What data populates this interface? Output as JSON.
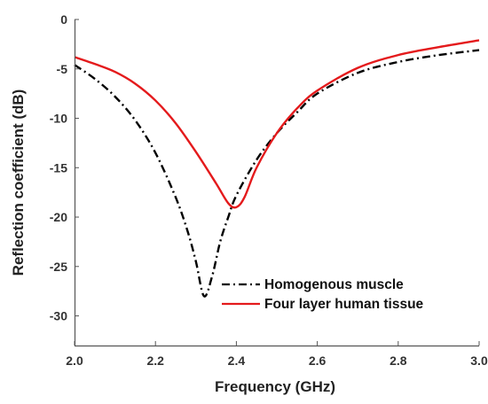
{
  "chart_data": {
    "type": "line",
    "title": "",
    "xlabel": "Frequency (GHz)",
    "ylabel": "Reflection coefficient (dB)",
    "xlim": [
      2.0,
      3.0
    ],
    "ylim": [
      -33,
      0
    ],
    "xticks": [
      "2.0",
      "2.2",
      "2.4",
      "2.6",
      "2.8",
      "3.0"
    ],
    "xtick_values": [
      2.0,
      2.2,
      2.4,
      2.6,
      2.8,
      3.0
    ],
    "yticks": [
      "0",
      "-5",
      "-10",
      "-15",
      "-20",
      "-25",
      "-30"
    ],
    "ytick_values": [
      0,
      -5,
      -10,
      -15,
      -20,
      -25,
      -30
    ],
    "grid": false,
    "legend_position": "bottom-right",
    "series": [
      {
        "name": "Homogenous muscle",
        "color": "#000000",
        "style": "dash-dot",
        "x": [
          2.0,
          2.05,
          2.1,
          2.15,
          2.2,
          2.25,
          2.28,
          2.3,
          2.32,
          2.34,
          2.36,
          2.38,
          2.4,
          2.45,
          2.5,
          2.55,
          2.6,
          2.7,
          2.8,
          2.9,
          3.0
        ],
        "y": [
          -4.6,
          -6.0,
          -7.8,
          -10.2,
          -13.5,
          -18.0,
          -21.5,
          -24.5,
          -28.0,
          -26.0,
          -22.5,
          -20.0,
          -17.8,
          -14.2,
          -11.5,
          -9.4,
          -7.5,
          -5.4,
          -4.3,
          -3.6,
          -3.1
        ]
      },
      {
        "name": "Four layer human tissue",
        "color": "#e41a1c",
        "style": "solid",
        "x": [
          2.0,
          2.05,
          2.1,
          2.15,
          2.2,
          2.25,
          2.3,
          2.35,
          2.38,
          2.4,
          2.42,
          2.45,
          2.5,
          2.55,
          2.6,
          2.7,
          2.8,
          2.9,
          3.0
        ],
        "y": [
          -3.8,
          -4.5,
          -5.3,
          -6.5,
          -8.2,
          -10.5,
          -13.4,
          -16.6,
          -18.6,
          -19.0,
          -18.0,
          -15.0,
          -11.5,
          -9.0,
          -7.2,
          -4.9,
          -3.6,
          -2.8,
          -2.1
        ]
      }
    ]
  }
}
